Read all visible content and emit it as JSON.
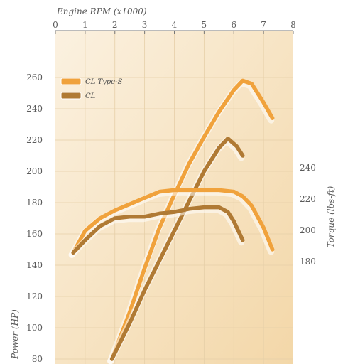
{
  "chart_data": {
    "type": "line",
    "title": "",
    "x_axis": {
      "label": "Engine RPM (x1000)",
      "position": "top",
      "ticks": [
        "0",
        "1",
        "2",
        "3",
        "4",
        "5",
        "6",
        "7",
        "8"
      ],
      "range": [
        0,
        8
      ]
    },
    "y_left": {
      "label": "Power (HP)",
      "ticks": [
        "80",
        "100",
        "120",
        "140",
        "160",
        "180",
        "200",
        "220",
        "240",
        "260"
      ],
      "range": [
        80,
        270
      ]
    },
    "y_right": {
      "label": "Torque (lbs-ft)",
      "ticks": [
        "180",
        "200",
        "220",
        "240"
      ],
      "values": [
        180,
        200,
        220,
        240
      ]
    },
    "grid": true,
    "legend": {
      "placement": "top-left",
      "entries": [
        {
          "name": "CL Type-S",
          "color": "#f0a23c"
        },
        {
          "name": "CL",
          "color": "#b07a34"
        }
      ]
    },
    "series": [
      {
        "name": "CL Type-S",
        "measure": "power",
        "axis": "left",
        "color": "#f0a23c",
        "x": [
          1.9,
          2.5,
          3.0,
          3.5,
          4.0,
          4.5,
          5.0,
          5.5,
          6.0,
          6.3,
          6.6,
          7.0,
          7.3
        ],
        "y": [
          80,
          110,
          138,
          164,
          185,
          205,
          222,
          238,
          252,
          258,
          256,
          244,
          234
        ]
      },
      {
        "name": "CL",
        "measure": "power",
        "axis": "left",
        "color": "#b07a34",
        "x": [
          1.9,
          2.5,
          3.0,
          3.5,
          4.0,
          4.5,
          5.0,
          5.5,
          5.8,
          6.1,
          6.3
        ],
        "y": [
          80,
          103,
          124,
          143,
          162,
          181,
          200,
          215,
          221,
          216,
          210
        ]
      },
      {
        "name": "CL Type-S",
        "measure": "torque",
        "axis": "right",
        "color": "#f0a23c",
        "x": [
          0.6,
          1.0,
          1.5,
          2.0,
          2.5,
          3.0,
          3.5,
          4.0,
          4.5,
          5.0,
          5.5,
          6.0,
          6.3,
          6.6,
          7.0,
          7.3
        ],
        "y": [
          148,
          162,
          170,
          175,
          179,
          183,
          187,
          188,
          188,
          188,
          188,
          187,
          184,
          178,
          164,
          150
        ]
      },
      {
        "name": "CL",
        "measure": "torque",
        "axis": "right",
        "color": "#b07a34",
        "x": [
          0.6,
          1.0,
          1.5,
          2.0,
          2.5,
          3.0,
          3.5,
          4.0,
          4.5,
          5.0,
          5.5,
          5.8,
          6.0,
          6.3
        ],
        "y": [
          148,
          156,
          165,
          170,
          171,
          171,
          173,
          174,
          176,
          177,
          177,
          174,
          168,
          156
        ]
      }
    ]
  }
}
